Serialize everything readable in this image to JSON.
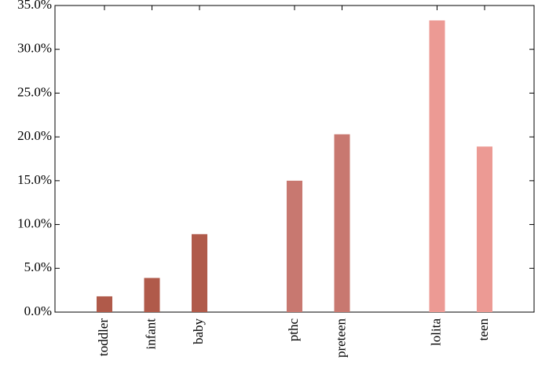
{
  "chart_data": {
    "type": "bar",
    "categories": [
      "toddler",
      "infant",
      "baby",
      null,
      "pthc",
      "preteen",
      null,
      "lolita",
      "teen"
    ],
    "values": [
      1.8,
      3.9,
      8.9,
      null,
      15.0,
      20.3,
      null,
      33.3,
      18.9
    ],
    "colors": [
      "#b05a4a",
      "#b05a4a",
      "#b05a4a",
      null,
      "#c87870",
      "#c87870",
      null,
      "#ec9a94",
      "#ec9a94"
    ],
    "ylim": [
      0,
      35
    ],
    "yticks": [
      {
        "value": 0,
        "label": "0.0%"
      },
      {
        "value": 5,
        "label": "5.0%"
      },
      {
        "value": 10,
        "label": "10.0%"
      },
      {
        "value": 15,
        "label": "15.0%"
      },
      {
        "value": 20,
        "label": "20.0%"
      },
      {
        "value": 25,
        "label": "25.0%"
      },
      {
        "value": 30,
        "label": "30.0%"
      },
      {
        "value": 35,
        "label": "35.0%"
      }
    ]
  }
}
